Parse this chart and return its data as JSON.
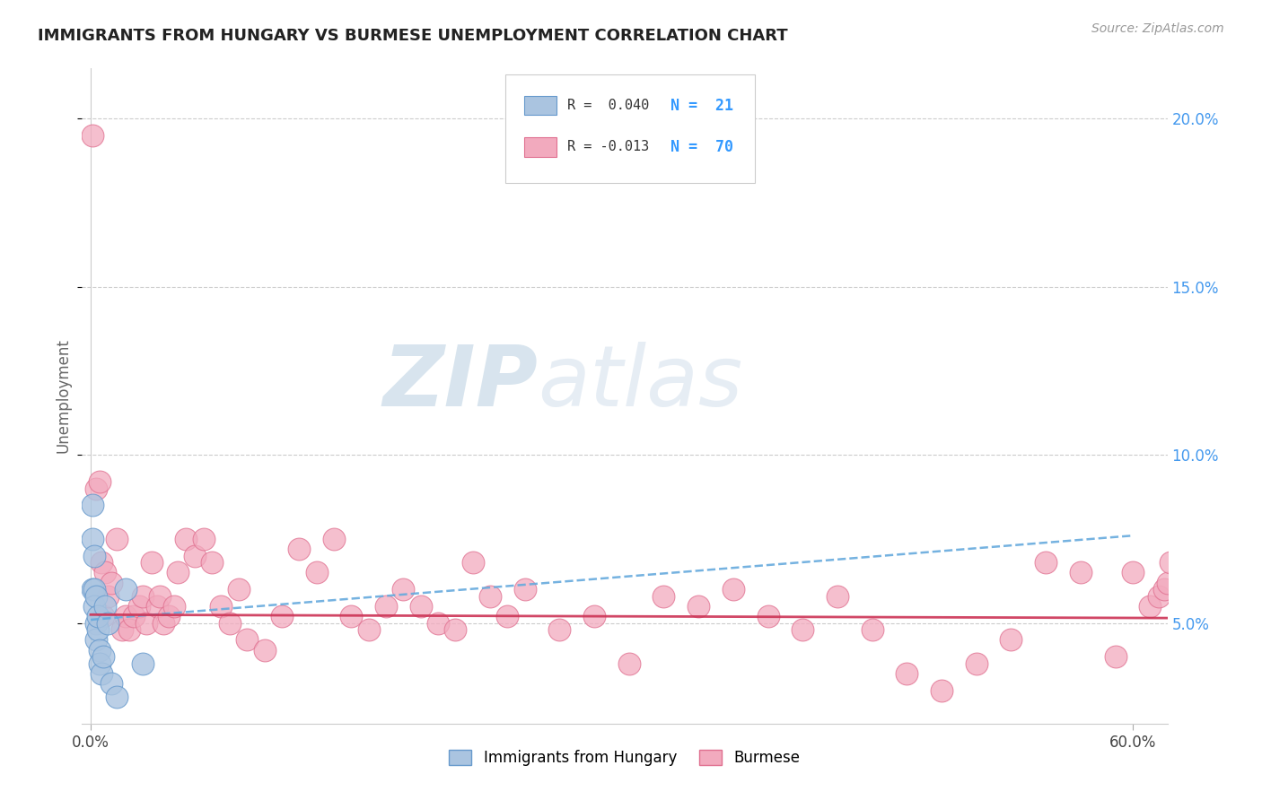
{
  "title": "IMMIGRANTS FROM HUNGARY VS BURMESE UNEMPLOYMENT CORRELATION CHART",
  "source": "Source: ZipAtlas.com",
  "ylabel": "Unemployment",
  "xlim": [
    -0.005,
    0.62
  ],
  "ylim": [
    0.02,
    0.215
  ],
  "xtick_left": 0.0,
  "xtick_right": 0.6,
  "xtick_left_label": "0.0%",
  "xtick_right_label": "60.0%",
  "yticks": [
    0.05,
    0.1,
    0.15,
    0.2
  ],
  "ytick_labels": [
    "5.0%",
    "10.0%",
    "15.0%",
    "20.0%"
  ],
  "blue_color": "#aac4e0",
  "pink_color": "#f2aabe",
  "blue_edge": "#6699cc",
  "pink_edge": "#e07090",
  "trend_blue_color": "#66aadd",
  "trend_pink_color": "#cc3355",
  "legend_R_blue": "R =  0.040",
  "legend_N_blue": "N =  21",
  "legend_R_pink": "R = -0.013",
  "legend_N_pink": "N =  70",
  "legend_label_blue": "Immigrants from Hungary",
  "legend_label_pink": "Burmese",
  "watermark_zip": "ZIP",
  "watermark_atlas": "atlas",
  "blue_scatter_x": [
    0.001,
    0.001,
    0.001,
    0.002,
    0.002,
    0.002,
    0.003,
    0.003,
    0.003,
    0.004,
    0.004,
    0.005,
    0.005,
    0.006,
    0.007,
    0.008,
    0.01,
    0.012,
    0.015,
    0.02,
    0.03
  ],
  "blue_scatter_y": [
    0.06,
    0.075,
    0.085,
    0.06,
    0.07,
    0.055,
    0.05,
    0.058,
    0.045,
    0.048,
    0.052,
    0.042,
    0.038,
    0.035,
    0.04,
    0.055,
    0.05,
    0.032,
    0.028,
    0.06,
    0.038
  ],
  "pink_scatter_x": [
    0.001,
    0.003,
    0.005,
    0.006,
    0.007,
    0.008,
    0.01,
    0.012,
    0.015,
    0.018,
    0.02,
    0.022,
    0.025,
    0.028,
    0.03,
    0.032,
    0.035,
    0.038,
    0.04,
    0.042,
    0.045,
    0.048,
    0.05,
    0.055,
    0.06,
    0.065,
    0.07,
    0.075,
    0.08,
    0.085,
    0.09,
    0.1,
    0.11,
    0.12,
    0.13,
    0.14,
    0.15,
    0.16,
    0.17,
    0.18,
    0.19,
    0.2,
    0.21,
    0.22,
    0.23,
    0.24,
    0.25,
    0.27,
    0.29,
    0.31,
    0.33,
    0.35,
    0.37,
    0.39,
    0.41,
    0.43,
    0.45,
    0.47,
    0.49,
    0.51,
    0.53,
    0.55,
    0.57,
    0.59,
    0.6,
    0.61,
    0.615,
    0.618,
    0.62,
    0.622
  ],
  "pink_scatter_y": [
    0.195,
    0.09,
    0.092,
    0.068,
    0.052,
    0.065,
    0.058,
    0.062,
    0.075,
    0.048,
    0.052,
    0.048,
    0.052,
    0.055,
    0.058,
    0.05,
    0.068,
    0.055,
    0.058,
    0.05,
    0.052,
    0.055,
    0.065,
    0.075,
    0.07,
    0.075,
    0.068,
    0.055,
    0.05,
    0.06,
    0.045,
    0.042,
    0.052,
    0.072,
    0.065,
    0.075,
    0.052,
    0.048,
    0.055,
    0.06,
    0.055,
    0.05,
    0.048,
    0.068,
    0.058,
    0.052,
    0.06,
    0.048,
    0.052,
    0.038,
    0.058,
    0.055,
    0.06,
    0.052,
    0.048,
    0.058,
    0.048,
    0.035,
    0.03,
    0.038,
    0.045,
    0.068,
    0.065,
    0.04,
    0.065,
    0.055,
    0.058,
    0.06,
    0.062,
    0.068
  ],
  "trend_blue_x0": 0.0,
  "trend_blue_x1": 0.6,
  "trend_blue_y0": 0.051,
  "trend_blue_y1": 0.076,
  "trend_pink_x0": 0.0,
  "trend_pink_x1": 0.62,
  "trend_pink_y0": 0.0525,
  "trend_pink_y1": 0.0515
}
